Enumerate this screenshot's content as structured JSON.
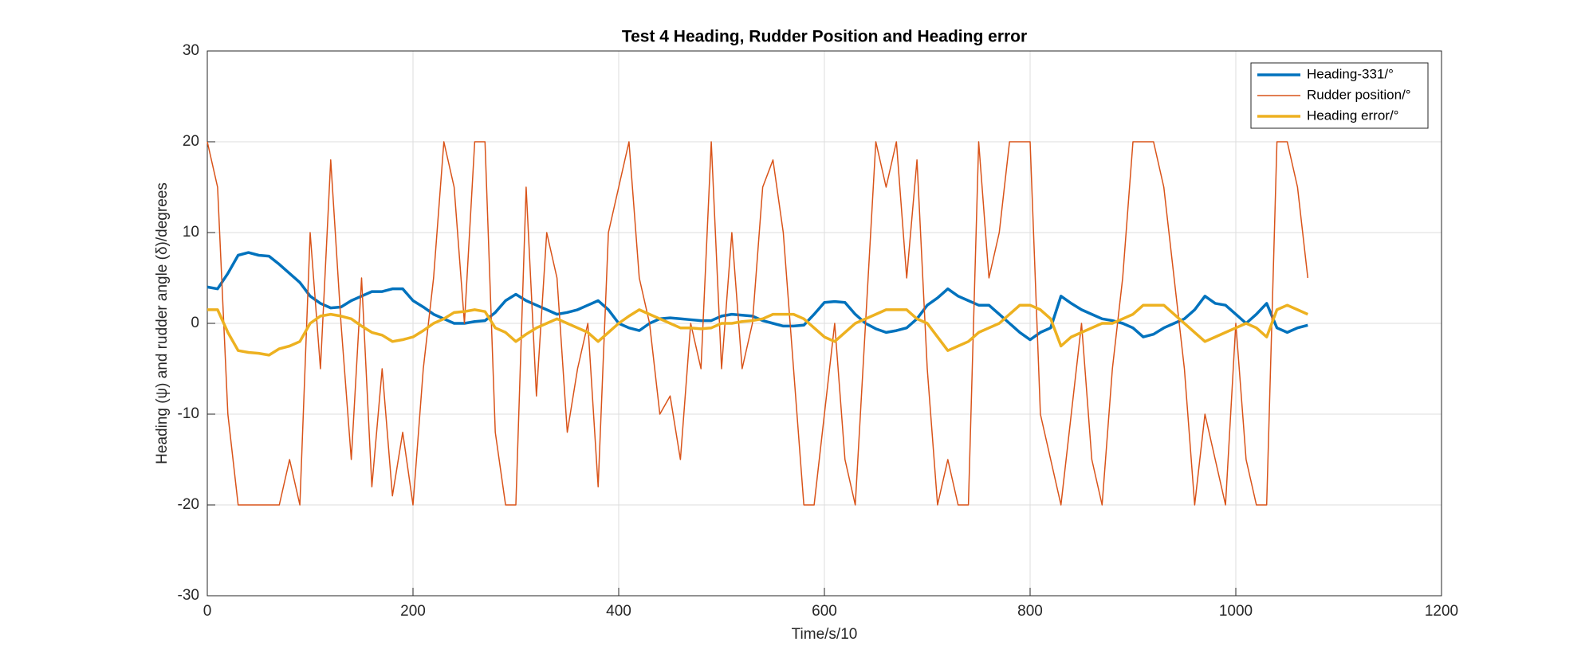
{
  "chart_data": {
    "type": "line",
    "title": "Test 4 Heading, Rudder Position and Heading error",
    "x_label": "Time/s/10",
    "y_label": "Heading (ψ) and rudder angle (δ)/degrees",
    "xlim": [
      0,
      1200
    ],
    "xticks": [
      0,
      200,
      400,
      600,
      800,
      1000,
      1200
    ],
    "ylim": [
      -30,
      30
    ],
    "yticks": [
      -30,
      -20,
      -10,
      0,
      10,
      20,
      30
    ],
    "grid": true,
    "legend": "top-right",
    "x": [
      0,
      10,
      20,
      30,
      40,
      50,
      60,
      70,
      80,
      90,
      100,
      110,
      120,
      130,
      140,
      150,
      160,
      170,
      180,
      190,
      200,
      210,
      220,
      230,
      240,
      250,
      260,
      270,
      280,
      290,
      300,
      310,
      320,
      330,
      340,
      350,
      360,
      370,
      380,
      390,
      400,
      410,
      420,
      430,
      440,
      450,
      460,
      470,
      480,
      490,
      500,
      510,
      520,
      530,
      540,
      550,
      560,
      570,
      580,
      590,
      600,
      610,
      620,
      630,
      640,
      650,
      660,
      670,
      680,
      690,
      700,
      710,
      720,
      730,
      740,
      750,
      760,
      770,
      780,
      790,
      800,
      810,
      820,
      830,
      840,
      850,
      860,
      870,
      880,
      890,
      900,
      910,
      920,
      930,
      940,
      950,
      960,
      970,
      980,
      990,
      1000,
      1010,
      1020,
      1030,
      1040,
      1050,
      1060,
      1070
    ],
    "series": [
      {
        "name": "Heading-331/°",
        "color": "#0072BD",
        "width": 3.5,
        "values": [
          4,
          3.8,
          5.5,
          7.5,
          7.8,
          7.5,
          7.4,
          6.5,
          5.5,
          4.5,
          3,
          2.2,
          1.7,
          1.8,
          2.5,
          3,
          3.5,
          3.5,
          3.8,
          3.8,
          2.5,
          1.8,
          1,
          0.5,
          0,
          0,
          0.2,
          0.3,
          1.2,
          2.5,
          3.2,
          2.5,
          2,
          1.5,
          1,
          1.2,
          1.5,
          2,
          2.5,
          1.5,
          0,
          -0.5,
          -0.8,
          0,
          0.5,
          0.6,
          0.5,
          0.4,
          0.3,
          0.3,
          0.8,
          1,
          0.9,
          0.8,
          0.3,
          0,
          -0.3,
          -0.3,
          -0.2,
          1,
          2.3,
          2.4,
          2.3,
          1,
          0,
          -0.6,
          -1,
          -0.8,
          -0.5,
          0.5,
          2,
          2.8,
          3.8,
          3,
          2.5,
          2,
          2,
          1,
          0,
          -1,
          -1.8,
          -1,
          -0.5,
          3,
          2.2,
          1.5,
          1,
          0.5,
          0.3,
          0,
          -0.5,
          -1.5,
          -1.2,
          -0.5,
          0,
          0.5,
          1.5,
          3,
          2.2,
          2,
          1,
          0,
          1,
          2.2,
          -0.5,
          -1,
          -0.5,
          -0.2
        ]
      },
      {
        "name": "Rudder position/°",
        "color": "#D95319",
        "width": 1.5,
        "values": [
          20,
          15,
          -10,
          -20,
          -20,
          -20,
          -20,
          -20,
          -15,
          -20,
          10,
          -5,
          18,
          0,
          -15,
          5,
          -18,
          -5,
          -19,
          -12,
          -20,
          -5,
          5,
          20,
          15,
          0,
          20,
          20,
          -12,
          -20,
          -20,
          15,
          -8,
          10,
          5,
          -12,
          -5,
          0,
          -18,
          10,
          15,
          20,
          5,
          0,
          -10,
          -8,
          -15,
          0,
          -5,
          20,
          -5,
          10,
          -5,
          0,
          15,
          18,
          10,
          -5,
          -20,
          -20,
          -10,
          0,
          -15,
          -20,
          0,
          20,
          15,
          20,
          5,
          18,
          -5,
          -20,
          -15,
          -20,
          -20,
          20,
          5,
          10,
          20,
          20,
          20,
          -10,
          -15,
          -20,
          -10,
          0,
          -15,
          -20,
          -5,
          5,
          20,
          20,
          20,
          15,
          5,
          -5,
          -20,
          -10,
          -15,
          -20,
          0,
          -15,
          -20,
          -20,
          20,
          20,
          15,
          5
        ]
      },
      {
        "name": "Heading error/°",
        "color": "#EDB120",
        "width": 3.5,
        "values": [
          1.5,
          1.5,
          -1,
          -3,
          -3.2,
          -3.3,
          -3.5,
          -2.8,
          -2.5,
          -2,
          0,
          0.8,
          1,
          0.8,
          0.5,
          -0.3,
          -1,
          -1.3,
          -2,
          -1.8,
          -1.5,
          -0.8,
          0,
          0.5,
          1.2,
          1.3,
          1.5,
          1.3,
          -0.5,
          -1,
          -2,
          -1.2,
          -0.5,
          0,
          0.5,
          0,
          -0.5,
          -1,
          -2,
          -1,
          0,
          0.8,
          1.5,
          1,
          0.5,
          0,
          -0.5,
          -0.5,
          -0.6,
          -0.5,
          0,
          0,
          0.2,
          0.3,
          0.5,
          1,
          1,
          1,
          0.5,
          -0.5,
          -1.5,
          -2,
          -1,
          0,
          0.5,
          1,
          1.5,
          1.5,
          1.5,
          0.5,
          0,
          -1.5,
          -3,
          -2.5,
          -2,
          -1,
          -0.5,
          0,
          1,
          2,
          2,
          1.5,
          0.5,
          -2.5,
          -1.5,
          -1,
          -0.5,
          0,
          0,
          0.5,
          1,
          2,
          2,
          2,
          1,
          0,
          -1,
          -2,
          -1.5,
          -1,
          -0.5,
          0,
          -0.5,
          -1.5,
          1.5,
          2,
          1.5,
          1
        ]
      }
    ]
  }
}
